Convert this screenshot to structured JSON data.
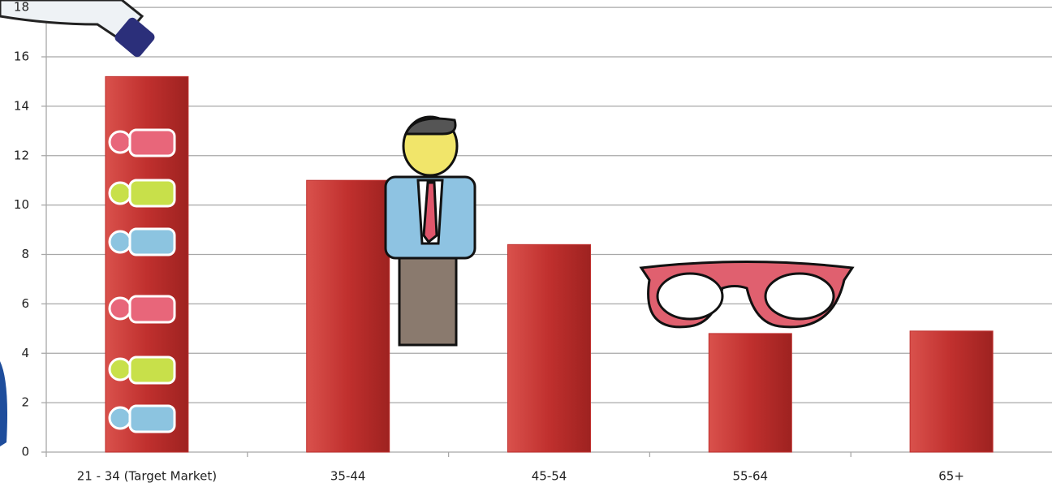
{
  "chart_data": {
    "type": "bar",
    "categories": [
      "21 - 34 (Target Market)",
      "35-44",
      "45-54",
      "55-64",
      "65+"
    ],
    "values": [
      15.2,
      11.0,
      8.4,
      4.8,
      4.9
    ],
    "color": "#c0302e",
    "ylim": [
      0,
      18.3
    ],
    "yticks": [
      0,
      2,
      4,
      6,
      8,
      10,
      12,
      14,
      16,
      18
    ],
    "grid": true
  }
}
